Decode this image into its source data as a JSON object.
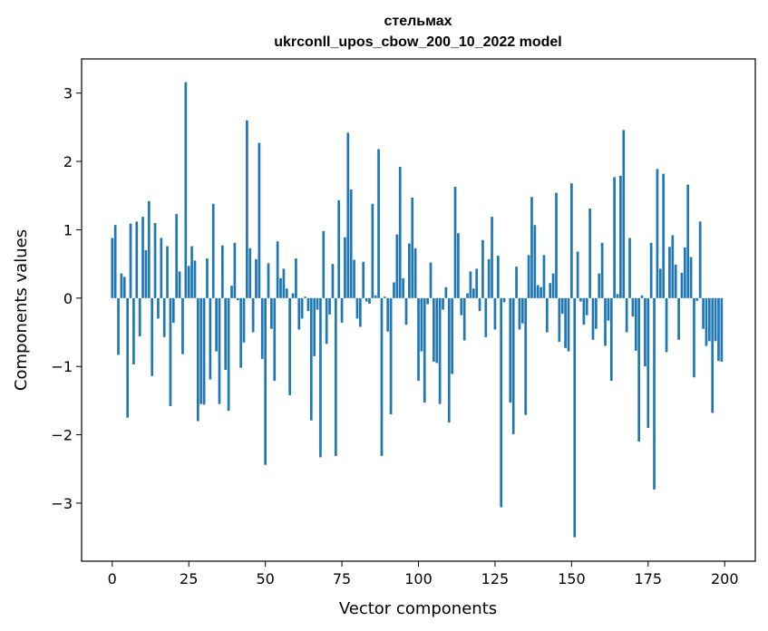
{
  "chart_data": {
    "type": "bar",
    "title": "стельмах",
    "subtitle": "ukrconll_upos_cbow_200_10_2022 model",
    "xlabel": "Vector components",
    "ylabel": "Components values",
    "xlim": [
      -10,
      210
    ],
    "ylim": [
      -3.85,
      3.5
    ],
    "xticks": [
      0,
      25,
      50,
      75,
      100,
      125,
      150,
      175,
      200
    ],
    "yticks": [
      -3,
      -2,
      -1,
      0,
      1,
      2,
      3
    ],
    "grid": false,
    "color": "#1f77b4",
    "x_start": 0,
    "values": [
      0.88,
      1.07,
      -0.83,
      0.36,
      0.31,
      -1.75,
      1.09,
      -0.97,
      1.12,
      -0.56,
      1.19,
      0.7,
      1.42,
      -1.14,
      1.1,
      -0.3,
      0.88,
      -0.57,
      0.76,
      -1.58,
      -0.36,
      1.23,
      0.39,
      -0.82,
      3.16,
      0.47,
      0.76,
      0.55,
      -1.8,
      -1.55,
      -1.56,
      0.58,
      -1.19,
      1.38,
      -0.78,
      -1.55,
      0.77,
      -1.05,
      -1.65,
      0.18,
      0.81,
      -0.03,
      -1.02,
      -0.65,
      2.6,
      0.73,
      -0.5,
      0.57,
      2.27,
      -0.89,
      -2.44,
      0.51,
      -0.45,
      -1.21,
      0.83,
      0.29,
      0.43,
      0.14,
      -1.42,
      0.07,
      0.58,
      -0.46,
      -0.3,
      0.02,
      -0.19,
      -1.79,
      -0.85,
      -0.17,
      -2.33,
      0.98,
      -0.67,
      -0.24,
      0.5,
      -2.31,
      1.43,
      -0.36,
      0.89,
      2.42,
      1.59,
      0.56,
      -0.3,
      -0.42,
      0.53,
      -0.05,
      -0.08,
      1.38,
      0.04,
      2.18,
      -2.31,
      0.02,
      -0.49,
      -1.7,
      0.23,
      0.93,
      1.92,
      0.29,
      -0.39,
      0.8,
      1.47,
      0.73,
      -1.21,
      -0.78,
      -1.53,
      -0.09,
      0.52,
      -0.93,
      -0.95,
      -1.55,
      -0.17,
      0.16,
      -1.82,
      -1.11,
      1.63,
      0.95,
      -0.25,
      -0.62,
      0.07,
      0.39,
      0.14,
      0.43,
      -0.19,
      0.85,
      -0.57,
      0.57,
      1.19,
      -0.46,
      0.62,
      -3.06,
      -0.06,
      0.0,
      -1.53,
      -1.99,
      0.46,
      -0.46,
      -0.37,
      -1.71,
      0.63,
      1.48,
      1.07,
      0.19,
      0.16,
      0.63,
      -0.5,
      0.22,
      0.36,
      1.54,
      -0.64,
      -0.23,
      -0.73,
      -0.78,
      1.68,
      -3.5,
      0.68,
      -0.05,
      -0.39,
      -0.25,
      1.31,
      -0.61,
      -0.45,
      0.36,
      0.81,
      -0.7,
      -0.33,
      -1.21,
      1.77,
      0.06,
      1.79,
      2.46,
      -0.5,
      0.88,
      -0.27,
      -0.77,
      -2.1,
      0.04,
      -1.0,
      -1.9,
      0.81,
      -2.8,
      1.89,
      0.43,
      1.82,
      -0.79,
      0.75,
      0.92,
      0.49,
      -0.61,
      0.37,
      0.74,
      1.66,
      0.6,
      -1.16,
      -0.04,
      1.12,
      -0.45,
      -0.7,
      -0.63,
      -1.68,
      -0.63,
      -0.92,
      -0.93
    ]
  }
}
